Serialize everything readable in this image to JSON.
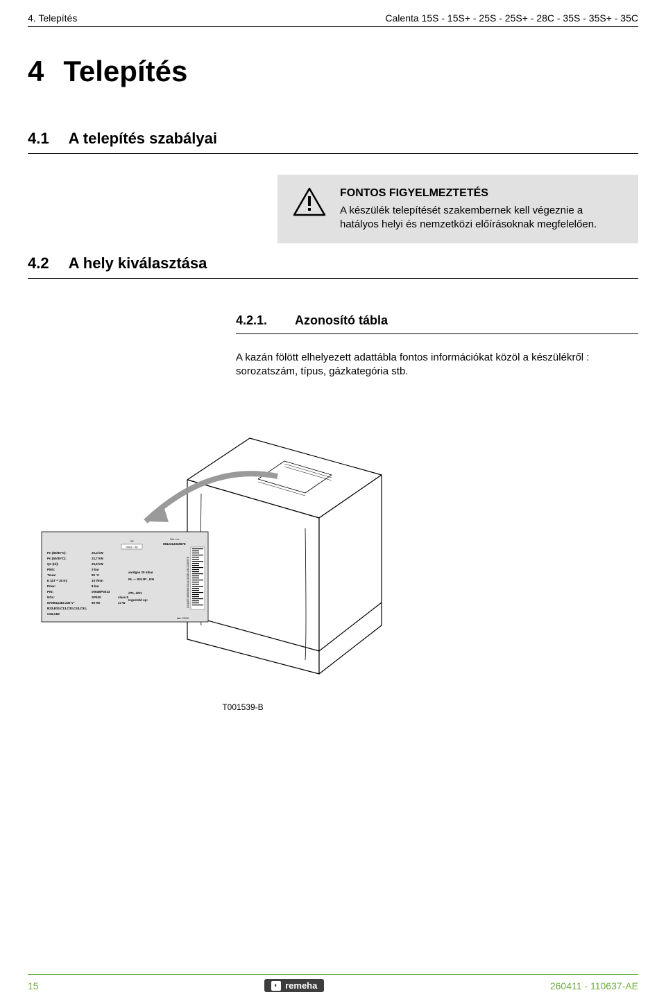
{
  "header": {
    "left": "4.  Telepítés",
    "right": "Calenta 15S - 15S+ - 25S - 25S+ - 28C - 35S - 35S+ - 35C"
  },
  "h1": {
    "num": "4",
    "text": "Telepítés"
  },
  "h2a": {
    "num": "4.1",
    "text": "A telepítés szabályai"
  },
  "warning": {
    "title": "FONTOS FIGYELMEZTETÉS",
    "body": "A készülék telepítését szakembernek kell végeznie a hatályos helyi és nemzetközi előírásoknak megfelelően."
  },
  "h2b": {
    "num": "4.2",
    "text": "A hely kiválasztása"
  },
  "h3": {
    "num": "4.2.1.",
    "text": "Azonosító tábla"
  },
  "body": "A kazán fölött elhelyezett adattábla fontos információkat közöl a készülékről : sorozatszám, típus, gázkategória stb.",
  "figure": {
    "label": "T001539-B",
    "plate": {
      "serial_label": "Ser. no.:",
      "serial": "0812312345678",
      "rows": [
        [
          "Pn (80/60°C):",
          "20,4  kW"
        ],
        [
          "Pn (50/30°C):",
          "22,7  kW"
        ],
        [
          "Qn (Hi):",
          "20,9  kW"
        ],
        [
          "PMS:",
          "3  bar"
        ],
        [
          "Tmax:",
          "90  °C"
        ],
        [
          "D (ΔT = 30 K):",
          "10  l/min"
        ],
        [
          "Pmw:",
          "8  bar"
        ],
        [
          "PIN:",
          "0063BP3013"
        ],
        [
          "NOx:",
          "SP520",
          "class 5"
        ],
        [
          "8708511483  230 V~",
          "50 HZ",
          "xx W"
        ],
        [
          "B23,B33,C13,C33,C43,C53,",
          "",
          ""
        ],
        [
          "C63,C83",
          "",
          ""
        ]
      ],
      "right_col": [
        "aardgas 20 mbar",
        "NL — II2L3P , I2H",
        "",
        "dT1, d0/1",
        "Ingesteld op:"
      ],
      "year": "fab:  2008",
      "ce_code": "0063 - 08"
    }
  },
  "footer": {
    "page": "15",
    "brand": "remeha",
    "right": "260411  - 110637-AE"
  },
  "colors": {
    "accent": "#6fae3f",
    "warn_bg": "#e1e1e1",
    "plate_bg": "#e0e0e0",
    "brand_bg": "#3d3d3d"
  }
}
